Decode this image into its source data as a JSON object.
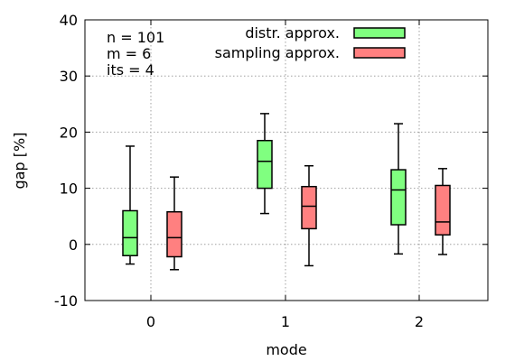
{
  "chart_data": {
    "type": "boxplot",
    "xlabel": "mode",
    "ylabel": "gap [%]",
    "categories": [
      "0",
      "1",
      "2"
    ],
    "ylim": [
      -10,
      40
    ],
    "yticks": [
      "-10",
      "0",
      "10",
      "20",
      "30",
      "40"
    ],
    "grid": true,
    "legend_position": "top-right",
    "annotations": [
      "n = 101",
      "m = 6",
      "its = 4"
    ],
    "series": [
      {
        "name": "distr. approx.",
        "color": "#80ff80",
        "boxes": [
          {
            "min": -3.5,
            "q1": -2.0,
            "median": 1.2,
            "q3": 6.0,
            "max": 17.5
          },
          {
            "min": 5.5,
            "q1": 10.0,
            "median": 14.8,
            "q3": 18.5,
            "max": 23.3
          },
          {
            "min": -1.7,
            "q1": 3.5,
            "median": 9.7,
            "q3": 13.3,
            "max": 21.5
          }
        ]
      },
      {
        "name": "sampling approx.",
        "color": "#ff8080",
        "boxes": [
          {
            "min": -4.5,
            "q1": -2.2,
            "median": 1.2,
            "q3": 5.8,
            "max": 12.0
          },
          {
            "min": -3.8,
            "q1": 2.8,
            "median": 6.8,
            "q3": 10.3,
            "max": 14.0
          },
          {
            "min": -1.8,
            "q1": 1.7,
            "median": 4.0,
            "q3": 10.5,
            "max": 13.5
          }
        ]
      }
    ]
  }
}
